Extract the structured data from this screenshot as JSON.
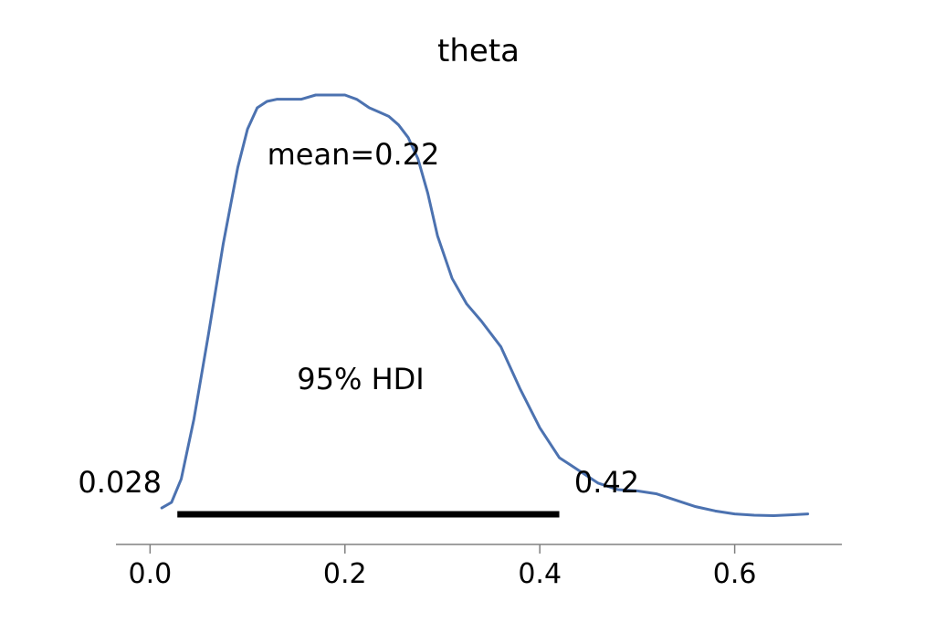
{
  "chart_data": {
    "type": "line",
    "title": "theta",
    "xlabel": "",
    "ylabel": "",
    "xlim": [
      -0.035,
      0.71
    ],
    "xticks": [
      0.0,
      0.2,
      0.4,
      0.6
    ],
    "xtick_labels": [
      "0.0",
      "0.2",
      "0.4",
      "0.6"
    ],
    "grid": false,
    "series": [
      {
        "color": "#4C72B0",
        "x": [
          0.012,
          0.022,
          0.032,
          0.045,
          0.06,
          0.075,
          0.09,
          0.1,
          0.11,
          0.12,
          0.13,
          0.14,
          0.155,
          0.17,
          0.185,
          0.2,
          0.212,
          0.225,
          0.235,
          0.245,
          0.255,
          0.265,
          0.275,
          0.285,
          0.295,
          0.31,
          0.325,
          0.34,
          0.36,
          0.38,
          0.4,
          0.42,
          0.44,
          0.46,
          0.48,
          0.5,
          0.52,
          0.54,
          0.56,
          0.58,
          0.6,
          0.62,
          0.64,
          0.66,
          0.675
        ],
        "y": [
          0.032,
          0.045,
          0.1,
          0.24,
          0.44,
          0.65,
          0.83,
          0.92,
          0.97,
          0.985,
          0.99,
          0.99,
          0.99,
          1.0,
          1.0,
          1.0,
          0.99,
          0.97,
          0.96,
          0.95,
          0.93,
          0.9,
          0.85,
          0.77,
          0.67,
          0.57,
          0.51,
          0.47,
          0.41,
          0.31,
          0.22,
          0.15,
          0.12,
          0.09,
          0.075,
          0.072,
          0.065,
          0.05,
          0.035,
          0.025,
          0.018,
          0.015,
          0.014,
          0.016,
          0.018
        ]
      }
    ],
    "annotations": {
      "mean_label": "mean=0.22",
      "hdi_label": "95% HDI",
      "hdi_low_label": "0.028",
      "hdi_high_label": "0.42"
    },
    "hdi": [
      0.028,
      0.42
    ],
    "hdi_color": "#000000",
    "axis_color": "#808080"
  }
}
